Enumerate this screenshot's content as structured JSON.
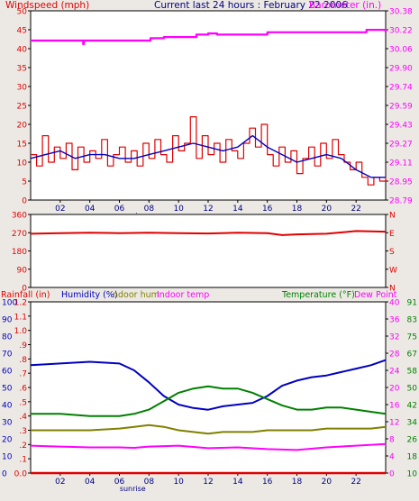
{
  "header": {
    "windspeed_label": "Windspeed (mph)",
    "period_label": "Current last 24 hours : February 22 2006",
    "barometer_label": "Barometer (in.)"
  },
  "colors": {
    "background": "#ece9e4",
    "plot_bg": "#ffffff",
    "windspeed": "#e00000",
    "wind_avg": "#0000c0",
    "barometer": "#ff00ff",
    "direction": "#e00000",
    "rainfall": "#e00000",
    "humidity": "#0000c0",
    "indoor_humidity": "#808000",
    "indoor_temp": "#ff00ff",
    "temperature": "#008000",
    "dew_point": "#ff00ff"
  },
  "chart_data": [
    {
      "type": "line",
      "name": "wind-barometer",
      "x_ticks": [
        "02",
        "04",
        "06",
        "08",
        "10",
        "12",
        "14",
        "16",
        "18",
        "20",
        "22"
      ],
      "x_tick_hours": [
        2,
        4,
        6,
        8,
        10,
        12,
        14,
        16,
        18,
        20,
        22
      ],
      "x_range": [
        0,
        24
      ],
      "sunrise_label": "sunrise",
      "sunrise_hour": 6.9,
      "y_left_ticks": [
        "0",
        "5",
        "10",
        "15",
        "20",
        "25",
        "30",
        "35",
        "40",
        "45",
        "50"
      ],
      "y_left_range": [
        0,
        50
      ],
      "y_right_ticks": [
        "28.79",
        "28.95",
        "29.11",
        "29.27",
        "29.43",
        "29.59",
        "29.74",
        "29.90",
        "30.06",
        "30.22",
        "30.38"
      ],
      "y_right_range": [
        28.79,
        30.38
      ],
      "series": [
        {
          "role": "windspeed",
          "axis": "left",
          "x": [
            0.0,
            0.4,
            0.8,
            1.2,
            1.6,
            2.0,
            2.4,
            2.8,
            3.2,
            3.6,
            4.0,
            4.4,
            4.8,
            5.2,
            5.6,
            6.0,
            6.4,
            6.8,
            7.2,
            7.6,
            8.0,
            8.4,
            8.8,
            9.2,
            9.6,
            10.0,
            10.4,
            10.8,
            11.2,
            11.6,
            12.0,
            12.4,
            12.8,
            13.2,
            13.6,
            14.0,
            14.4,
            14.8,
            15.2,
            15.6,
            16.0,
            16.4,
            16.8,
            17.2,
            17.6,
            18.0,
            18.4,
            18.8,
            19.2,
            19.6,
            20.0,
            20.4,
            20.8,
            21.2,
            21.6,
            22.0,
            22.4,
            22.8,
            23.2,
            23.6,
            24.0
          ],
          "values": [
            12,
            9,
            17,
            10,
            14,
            11,
            15,
            8,
            14,
            10,
            13,
            11,
            16,
            9,
            12,
            14,
            10,
            13,
            9,
            15,
            11,
            16,
            12,
            10,
            17,
            13,
            15,
            22,
            11,
            17,
            12,
            15,
            10,
            16,
            13,
            11,
            15,
            19,
            14,
            20,
            12,
            9,
            14,
            10,
            13,
            7,
            11,
            14,
            9,
            15,
            11,
            16,
            12,
            10,
            8,
            10,
            6,
            4,
            6,
            5,
            6
          ]
        },
        {
          "role": "average",
          "axis": "left",
          "x": [
            0,
            1,
            2,
            3,
            4,
            5,
            6,
            7,
            8,
            9,
            10,
            11,
            12,
            13,
            14,
            15,
            16,
            17,
            18,
            19,
            20,
            21,
            22,
            23,
            24
          ],
          "values": [
            11,
            12,
            13,
            11,
            12,
            12,
            11,
            11,
            12,
            13,
            14,
            15,
            14,
            13,
            14,
            17,
            14,
            12,
            10,
            11,
            12,
            11,
            8,
            6,
            6
          ]
        },
        {
          "role": "barometer",
          "axis": "right",
          "x": [
            0,
            3.5,
            3.55,
            3.6,
            8,
            8.1,
            9,
            11,
            11.2,
            12,
            12.6,
            16,
            22.5,
            22.7,
            24
          ],
          "values": [
            30.13,
            30.13,
            30.1,
            30.13,
            30.13,
            30.15,
            30.16,
            30.16,
            30.18,
            30.19,
            30.18,
            30.2,
            30.2,
            30.22,
            30.2
          ]
        }
      ]
    },
    {
      "type": "line",
      "name": "wind-direction",
      "y_left_ticks": [
        "0",
        "90",
        "180",
        "270",
        "360"
      ],
      "y_left_range": [
        0,
        360
      ],
      "y_right_ticks": [
        "N",
        "W",
        "S",
        "E",
        "N"
      ],
      "series": [
        {
          "role": "direction",
          "x": [
            0,
            2,
            4,
            6,
            8,
            10,
            12,
            14,
            16,
            17,
            18,
            20,
            22,
            24
          ],
          "values": [
            265,
            268,
            270,
            268,
            270,
            268,
            266,
            270,
            268,
            258,
            262,
            265,
            278,
            275
          ]
        }
      ]
    },
    {
      "type": "line",
      "name": "temp-humidity",
      "header_labels": {
        "rainfall": "Rainfall (in)",
        "humidity": "Humidity (%)",
        "indoor_humidity": "ndoor hum",
        "indoor_temp": "Indoor temp",
        "temperature": "Temperature (°F)",
        "dew_point": "Dew Point"
      },
      "y_rain_ticks": [
        "0.0",
        ".1",
        ".2",
        ".3",
        ".4",
        ".5",
        ".6",
        ".7",
        ".8",
        ".9",
        "1.0",
        "1.1",
        "1.2"
      ],
      "y_rain_range": [
        0,
        1.2
      ],
      "y_hum_ticks": [
        "0",
        "10",
        "20",
        "30",
        "40",
        "50",
        "60",
        "70",
        "80",
        "90",
        "100"
      ],
      "y_hum_range": [
        0,
        100
      ],
      "y_indoor_ticks": [
        "0",
        "4",
        "8",
        "12",
        "16",
        "20",
        "24",
        "28",
        "32",
        "36",
        "40"
      ],
      "y_indoor_range": [
        0,
        40
      ],
      "y_temp_ticks": [
        "10",
        "18",
        "26",
        "34",
        "42",
        "50",
        "58",
        "67",
        "75",
        "83",
        "91"
      ],
      "y_temp_range": [
        10,
        91
      ],
      "series": [
        {
          "role": "rainfall",
          "axis": "rain",
          "x": [
            0,
            24
          ],
          "values": [
            0.0,
            0.0
          ]
        },
        {
          "role": "humidity",
          "axis": "hum",
          "x": [
            0,
            2,
            4,
            6,
            7,
            8,
            9,
            10,
            11,
            12,
            13,
            14,
            15,
            16,
            17,
            18,
            19,
            20,
            21,
            22,
            23,
            24
          ],
          "values": [
            63,
            64,
            65,
            64,
            60,
            53,
            45,
            40,
            38,
            37,
            39,
            40,
            41,
            45,
            51,
            54,
            56,
            57,
            59,
            61,
            63,
            66
          ]
        },
        {
          "role": "indoor_humidity",
          "axis": "hum",
          "x": [
            0,
            2,
            4,
            6,
            7,
            8,
            9,
            10,
            11,
            12,
            13,
            14,
            15,
            16,
            17,
            18,
            19,
            20,
            21,
            22,
            23,
            24
          ],
          "values": [
            25,
            25,
            25,
            26,
            27,
            28,
            27,
            25,
            24,
            23,
            24,
            24,
            24,
            25,
            25,
            25,
            25,
            26,
            26,
            26,
            26,
            27
          ]
        },
        {
          "role": "indoor_temp",
          "axis": "indoor",
          "x": [
            0,
            2,
            4,
            6,
            7,
            8,
            10,
            12,
            14,
            16,
            18,
            20,
            22,
            24
          ],
          "values": [
            6.4,
            6.2,
            6.0,
            6.0,
            5.9,
            6.2,
            6.4,
            5.8,
            6.0,
            5.6,
            5.4,
            6.0,
            6.4,
            6.8
          ]
        },
        {
          "role": "temperature",
          "axis": "temp",
          "x": [
            0,
            2,
            4,
            6,
            7,
            8,
            9,
            10,
            11,
            12,
            13,
            14,
            15,
            16,
            17,
            18,
            19,
            20,
            21,
            22,
            23,
            24
          ],
          "values": [
            38,
            38,
            37,
            37,
            38,
            40,
            44,
            48,
            50,
            51,
            50,
            50,
            48,
            45,
            42,
            40,
            40,
            41,
            41,
            40,
            39,
            38
          ]
        }
      ]
    }
  ]
}
